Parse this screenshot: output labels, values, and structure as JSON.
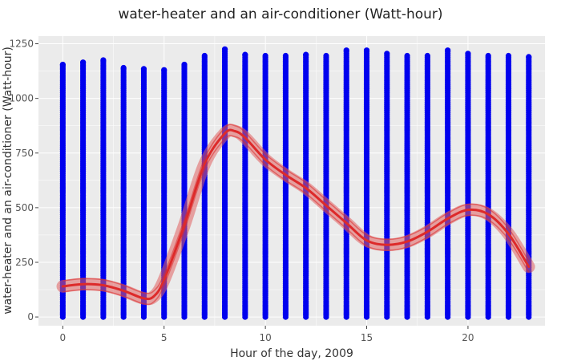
{
  "chart_data": {
    "type": "scatter",
    "title": "water-heater and an air-conditioner (Watt-hour)",
    "xlabel": "Hour of the day, 2009",
    "ylabel": "water-heater and an air-conditioner (Watt-hour)",
    "xlim": [
      -1.2,
      23.8
    ],
    "ylim": [
      -40,
      1285
    ],
    "x_ticks": [
      0,
      5,
      10,
      15,
      20
    ],
    "x_tick_labels": [
      "0",
      "5",
      "10",
      "15",
      "20"
    ],
    "y_ticks": [
      0,
      250,
      500,
      750,
      1000,
      1250
    ],
    "y_tick_labels": [
      "0",
      "250",
      "500",
      "750",
      "1000",
      "1250"
    ],
    "grid": true,
    "colors": {
      "panel": "#ebebeb",
      "grid": "#ffffff",
      "points": "#0000ee",
      "smooth_line": "#dd2a2a",
      "smooth_band": "#e06060"
    },
    "series": [
      {
        "kind": "points",
        "point_ranges": [
          {
            "x": 0,
            "y_min": 0,
            "y_max": 1155
          },
          {
            "x": 1,
            "y_min": 0,
            "y_max": 1165
          },
          {
            "x": 2,
            "y_min": 0,
            "y_max": 1175
          },
          {
            "x": 3,
            "y_min": 0,
            "y_max": 1140
          },
          {
            "x": 4,
            "y_min": 0,
            "y_max": 1135
          },
          {
            "x": 5,
            "y_min": 0,
            "y_max": 1130
          },
          {
            "x": 6,
            "y_min": 0,
            "y_max": 1155
          },
          {
            "x": 7,
            "y_min": 0,
            "y_max": 1195
          },
          {
            "x": 8,
            "y_min": 0,
            "y_max": 1225
          },
          {
            "x": 9,
            "y_min": 0,
            "y_max": 1200
          },
          {
            "x": 10,
            "y_min": 0,
            "y_max": 1195
          },
          {
            "x": 11,
            "y_min": 0,
            "y_max": 1195
          },
          {
            "x": 12,
            "y_min": 0,
            "y_max": 1200
          },
          {
            "x": 13,
            "y_min": 0,
            "y_max": 1195
          },
          {
            "x": 14,
            "y_min": 0,
            "y_max": 1220
          },
          {
            "x": 15,
            "y_min": 0,
            "y_max": 1220
          },
          {
            "x": 16,
            "y_min": 0,
            "y_max": 1205
          },
          {
            "x": 17,
            "y_min": 0,
            "y_max": 1195
          },
          {
            "x": 18,
            "y_min": 0,
            "y_max": 1195
          },
          {
            "x": 19,
            "y_min": 0,
            "y_max": 1220
          },
          {
            "x": 20,
            "y_min": 0,
            "y_max": 1205
          },
          {
            "x": 21,
            "y_min": 0,
            "y_max": 1195
          },
          {
            "x": 22,
            "y_min": 0,
            "y_max": 1195
          },
          {
            "x": 23,
            "y_min": 0,
            "y_max": 1190
          }
        ]
      },
      {
        "kind": "smooth",
        "x": [
          0,
          1,
          2,
          3,
          4,
          4.5,
          5,
          6,
          7,
          8,
          8.5,
          9,
          10,
          11,
          12,
          13,
          14,
          15,
          16,
          17,
          18,
          19,
          20,
          21,
          22,
          23
        ],
        "y": [
          140,
          150,
          145,
          120,
          85,
          95,
          170,
          420,
          700,
          840,
          850,
          820,
          720,
          650,
          590,
          510,
          430,
          350,
          330,
          345,
          390,
          450,
          490,
          470,
          380,
          230
        ],
        "band_halfwidth": 25
      }
    ]
  }
}
